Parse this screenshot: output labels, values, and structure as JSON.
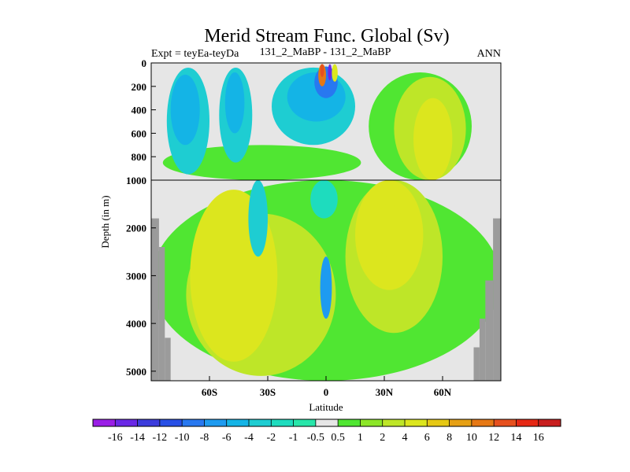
{
  "chart_data": {
    "type": "heatmap",
    "title": "Merid Stream Func. Global (Sv)",
    "subtitle_left": "Expt = teyEa-teyDa",
    "subtitle_center": "131_2_MaBP - 131_2_MaBP",
    "subtitle_right": "ANN",
    "xlabel": "Latitude",
    "ylabel": "Depth (in m)",
    "x_ticks": [
      {
        "lat": -60,
        "label": "60S"
      },
      {
        "lat": -30,
        "label": "30S"
      },
      {
        "lat": 0,
        "label": "0"
      },
      {
        "lat": 30,
        "label": "30N"
      },
      {
        "lat": 60,
        "label": "60N"
      }
    ],
    "y_ticks_upper": [
      {
        "depth": 0,
        "label": "0"
      },
      {
        "depth": 200,
        "label": "200"
      },
      {
        "depth": 400,
        "label": "400"
      },
      {
        "depth": 600,
        "label": "600"
      },
      {
        "depth": 800,
        "label": "800"
      },
      {
        "depth": 1000,
        "label": "1000"
      }
    ],
    "y_ticks_lower": [
      {
        "depth": 2000,
        "label": "2000"
      },
      {
        "depth": 3000,
        "label": "3000"
      },
      {
        "depth": 4000,
        "label": "4000"
      },
      {
        "depth": 5000,
        "label": "5000"
      }
    ],
    "xlim": [
      -90,
      90
    ],
    "ylim_upper": [
      0,
      1000
    ],
    "ylim_lower": [
      1000,
      5200
    ],
    "split_depth": 1000,
    "colorbar": {
      "labels": [
        "-16",
        "-14",
        "-12",
        "-10",
        "-8",
        "-6",
        "-4",
        "-2",
        "-1",
        "-0.5",
        "0.5",
        "1",
        "2",
        "4",
        "6",
        "8",
        "10",
        "12",
        "14",
        "16"
      ],
      "colors": [
        "#9a1ee6",
        "#6a28e6",
        "#3c3cdc",
        "#2850e6",
        "#2878f0",
        "#1e9bf0",
        "#14b4e6",
        "#1ecdd2",
        "#1edcbe",
        "#28e6aa",
        "#e6e6e6",
        "#50e632",
        "#8ce628",
        "#bee628",
        "#dce61e",
        "#e6c814",
        "#e6a014",
        "#e67814",
        "#e6501e",
        "#e62814",
        "#c81e1e"
      ]
    },
    "regions": [
      {
        "level": 0.75,
        "lat1": -90,
        "lat2": 90,
        "d1": 1000,
        "d2": 5200
      },
      {
        "level": 2.5,
        "lat1": -72,
        "lat2": 5,
        "d1": 1700,
        "d2": 5100
      },
      {
        "level": 4.5,
        "lat1": -70,
        "lat2": -25,
        "d1": 1200,
        "d2": 4800
      },
      {
        "level": 5.5,
        "lat1": -60,
        "lat2": -40,
        "d1": 1500,
        "d2": 4500
      },
      {
        "level": 0.75,
        "lat1": 22,
        "lat2": 75,
        "d1": 80,
        "d2": 1000
      },
      {
        "level": 2.5,
        "lat1": 35,
        "lat2": 72,
        "d1": 120,
        "d2": 1000
      },
      {
        "level": 4.5,
        "lat1": 45,
        "lat2": 65,
        "d1": 300,
        "d2": 1000
      },
      {
        "level": 2.5,
        "lat1": 10,
        "lat2": 60,
        "d1": 1000,
        "d2": 4200
      },
      {
        "level": 4.5,
        "lat1": 15,
        "lat2": 50,
        "d1": 1000,
        "d2": 3300
      },
      {
        "level": 5.5,
        "lat1": 25,
        "lat2": 40,
        "d1": 1500,
        "d2": 2600
      },
      {
        "level": 0.75,
        "lat1": -84,
        "lat2": 18,
        "d1": 700,
        "d2": 1000
      },
      {
        "level": -3.0,
        "lat1": -82,
        "lat2": -60,
        "d1": 40,
        "d2": 950
      },
      {
        "level": -4.5,
        "lat1": -80,
        "lat2": -65,
        "d1": 100,
        "d2": 700
      },
      {
        "level": -3.0,
        "lat1": -55,
        "lat2": -38,
        "d1": 40,
        "d2": 850
      },
      {
        "level": -4.5,
        "lat1": -52,
        "lat2": -42,
        "d1": 80,
        "d2": 600
      },
      {
        "level": -3.0,
        "lat1": -28,
        "lat2": 15,
        "d1": 40,
        "d2": 700
      },
      {
        "level": -4.5,
        "lat1": -20,
        "lat2": 10,
        "d1": 80,
        "d2": 500
      },
      {
        "level": -3.0,
        "lat1": -40,
        "lat2": -30,
        "d1": 1000,
        "d2": 2600
      },
      {
        "level": -1.5,
        "lat1": -8,
        "lat2": 6,
        "d1": 1000,
        "d2": 1800
      },
      {
        "level": -9.0,
        "lat1": -6,
        "lat2": 6,
        "d1": 30,
        "d2": 300
      },
      {
        "level": 11.0,
        "lat1": -4,
        "lat2": 0,
        "d1": 10,
        "d2": 200
      },
      {
        "level": 13.0,
        "lat1": -3,
        "lat2": -1,
        "d1": 10,
        "d2": 120
      },
      {
        "level": -15.0,
        "lat1": 1,
        "lat2": 3,
        "d1": 10,
        "d2": 150
      },
      {
        "level": 5.0,
        "lat1": 3,
        "lat2": 6,
        "d1": 10,
        "d2": 160
      },
      {
        "level": -6.0,
        "lat1": -3,
        "lat2": 3,
        "d1": 2600,
        "d2": 3900
      }
    ],
    "land": [
      {
        "lat1": -90,
        "lat2": -86,
        "d1": 1800,
        "d2": 5200
      },
      {
        "lat1": -86,
        "lat2": -83,
        "d1": 2400,
        "d2": 5200
      },
      {
        "lat1": -83,
        "lat2": -80,
        "d1": 4300,
        "d2": 5200
      },
      {
        "lat1": 76,
        "lat2": 79,
        "d1": 4500,
        "d2": 5200
      },
      {
        "lat1": 79,
        "lat2": 82,
        "d1": 3900,
        "d2": 5200
      },
      {
        "lat1": 82,
        "lat2": 86,
        "d1": 3100,
        "d2": 5200
      },
      {
        "lat1": 86,
        "lat2": 90,
        "d1": 1800,
        "d2": 5200
      }
    ]
  }
}
